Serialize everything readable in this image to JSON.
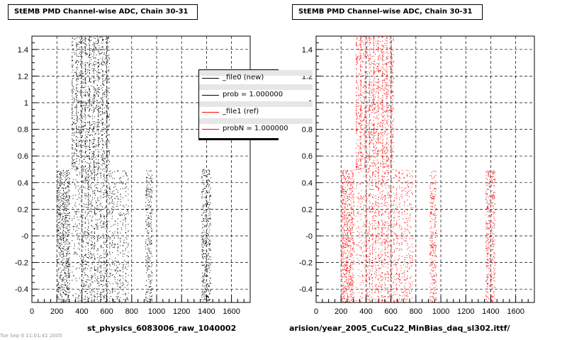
{
  "panels": [
    {
      "title": "StEMB PMD Channel-wise ADC, Chain 30-31",
      "file_label": "st_physics_6083006_raw_1040002"
    },
    {
      "title": "StEMB PMD Channel-wise ADC, Chain 30-31",
      "file_label": "arision/year_2005_CuCu22_MinBias_daq_sl302.ittf/"
    }
  ],
  "footer_note": "Tue Sep 6 11:01:41 2005",
  "legend": {
    "entries": [
      {
        "label": "_file0 (new)",
        "color": "#000000"
      },
      {
        "label": "prob = 1.000000",
        "color": "#000000"
      },
      {
        "label": "_file1 (ref)",
        "color": "#ff0000"
      },
      {
        "label": "probN = 1.000000",
        "color": "#ff0000"
      }
    ]
  },
  "chart_data": [
    {
      "type": "scatter",
      "title": "StEMB PMD Channel-wise ADC, Chain 30-31",
      "xlabel": "",
      "ylabel": "",
      "xlim": [
        0,
        1750
      ],
      "ylim": [
        -0.5,
        1.5
      ],
      "xticks": [
        0,
        200,
        400,
        600,
        800,
        1000,
        1200,
        1400,
        1600
      ],
      "yticks": [
        -0.4,
        -0.2,
        0,
        0.2,
        0.4,
        0.6,
        0.8,
        1,
        1.2,
        1.4
      ],
      "ytick_labels": [
        "-0.4",
        "-0.2",
        "-0",
        "0.2",
        "0.4",
        "0.6",
        "0.8",
        "1",
        "1.2",
        "1.4"
      ],
      "grid": true,
      "series": [
        {
          "name": "_file0 (new)",
          "color": "#000000"
        }
      ],
      "regions": [
        {
          "x": [
            200,
            300
          ],
          "y": [
            -0.5,
            0.5
          ],
          "density": 1.0
        },
        {
          "x": [
            320,
            400
          ],
          "y": [
            -0.5,
            0.5
          ],
          "density": 0.25
        },
        {
          "x": [
            400,
            600
          ],
          "y": [
            -0.5,
            0.5
          ],
          "density": 0.55
        },
        {
          "x": [
            600,
            770
          ],
          "y": [
            -0.5,
            0.5
          ],
          "density": 0.35
        },
        {
          "x": [
            320,
            600
          ],
          "y": [
            0.5,
            1.5
          ],
          "density": 0.7
        },
        {
          "x": [
            600,
            620
          ],
          "y": [
            0.5,
            1.5
          ],
          "density": 0.6
        },
        {
          "x": [
            910,
            960
          ],
          "y": [
            -0.5,
            0.5
          ],
          "density": 0.75
        },
        {
          "x": [
            1360,
            1430
          ],
          "y": [
            -0.5,
            0.5
          ],
          "density": 0.8
        }
      ]
    },
    {
      "type": "scatter",
      "title": "StEMB PMD Channel-wise ADC, Chain 30-31",
      "xlabel": "",
      "ylabel": "",
      "xlim": [
        0,
        1750
      ],
      "ylim": [
        -0.5,
        1.5
      ],
      "xticks": [
        0,
        200,
        400,
        600,
        800,
        1000,
        1200,
        1400,
        1600
      ],
      "yticks": [
        -0.4,
        -0.2,
        0,
        0.2,
        0.4,
        0.6,
        0.8,
        1,
        1.2,
        1.4
      ],
      "ytick_labels": [
        "-0.4",
        "-0.2",
        "-0",
        "0.2",
        "0.4",
        "0.6",
        "0.8",
        "1",
        "1.2",
        "1.4"
      ],
      "grid": true,
      "series": [
        {
          "name": "_file1 (ref)",
          "color": "#ff0000"
        }
      ],
      "regions": [
        {
          "x": [
            200,
            300
          ],
          "y": [
            -0.5,
            0.5
          ],
          "density": 1.0
        },
        {
          "x": [
            320,
            400
          ],
          "y": [
            -0.5,
            0.5
          ],
          "density": 0.25
        },
        {
          "x": [
            400,
            600
          ],
          "y": [
            -0.5,
            0.5
          ],
          "density": 0.55
        },
        {
          "x": [
            600,
            770
          ],
          "y": [
            -0.5,
            0.5
          ],
          "density": 0.35
        },
        {
          "x": [
            320,
            600
          ],
          "y": [
            0.5,
            1.5
          ],
          "density": 0.7
        },
        {
          "x": [
            600,
            620
          ],
          "y": [
            0.5,
            1.5
          ],
          "density": 0.6
        },
        {
          "x": [
            910,
            960
          ],
          "y": [
            -0.5,
            0.5
          ],
          "density": 0.75
        },
        {
          "x": [
            1360,
            1430
          ],
          "y": [
            -0.5,
            0.5
          ],
          "density": 0.8
        }
      ]
    }
  ]
}
